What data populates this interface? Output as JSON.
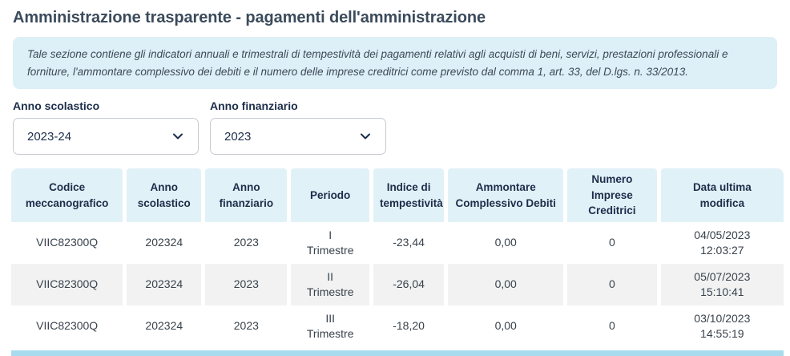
{
  "page": {
    "title": "Amministrazione trasparente - pagamenti dell'amministrazione"
  },
  "info": {
    "text": "Tale sezione contiene gli indicatori annuali e trimestrali di tempestività dei pagamenti relativi agli acquisti di beni, servizi, prestazioni professionali e forniture, l'ammontare complessivo dei debiti e il numero delle imprese creditrici come previsto dal comma 1, art. 33, del D.lgs. n. 33/2013."
  },
  "filters": {
    "anno_scolastico": {
      "label": "Anno scolastico",
      "selected": "2023-24"
    },
    "anno_finanziario": {
      "label": "Anno finanziario",
      "selected": "2023"
    }
  },
  "icons": {
    "dropdown": "chevron-down-icon"
  },
  "colors": {
    "heading_text": "#3b4b5c",
    "navy_text": "#1c2e4a",
    "info_box_bg": "#ddeff7",
    "table_header_bg": "#e1f1f8",
    "row_stripe_bg": "#f2f2f2",
    "scrollbar_bg": "#a9dbee"
  },
  "table": {
    "columns": [
      "Codice\nmeccanografico",
      "Anno\nscolastico",
      "Anno\nfinanziario",
      "Periodo",
      "Indice di\ntempestività",
      "Ammontare\nComplessivo Debiti",
      "Numero\nImprese\nCreditrici",
      "Data ultima\nmodifica"
    ],
    "rows": [
      [
        "VIIC82300Q",
        "202324",
        "2023",
        "I\nTrimestre",
        "-23,44",
        "0,00",
        "0",
        "04/05/2023\n12:03:27"
      ],
      [
        "VIIC82300Q",
        "202324",
        "2023",
        "II\nTrimestre",
        "-26,04",
        "0,00",
        "0",
        "05/07/2023\n15:10:41"
      ],
      [
        "VIIC82300Q",
        "202324",
        "2023",
        "III\nTrimestre",
        "-18,20",
        "0,00",
        "0",
        "03/10/2023\n14:55:19"
      ]
    ]
  }
}
